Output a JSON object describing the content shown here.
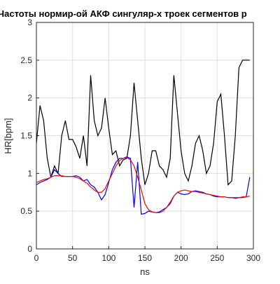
{
  "chart_data": {
    "type": "line",
    "title": "Частоты нормир-ой АКФ сингуляр-х троек сегментов р",
    "x_label": "ns",
    "y_label": "HR[bpm]",
    "x": [
      0,
      5,
      10,
      15,
      20,
      25,
      30,
      35,
      40,
      45,
      50,
      55,
      60,
      65,
      70,
      75,
      80,
      85,
      90,
      95,
      100,
      105,
      110,
      115,
      120,
      125,
      130,
      135,
      140,
      145,
      150,
      155,
      160,
      165,
      170,
      175,
      180,
      185,
      190,
      195,
      200,
      205,
      210,
      215,
      220,
      225,
      230,
      235,
      240,
      245,
      250,
      255,
      260,
      265,
      270,
      275,
      280,
      285,
      290,
      295
    ],
    "series": [
      {
        "color": "#000000",
        "values": [
          1.4,
          1.9,
          1.7,
          1.2,
          0.95,
          1.1,
          1.0,
          1.5,
          1.7,
          1.45,
          1.45,
          1.35,
          1.2,
          1.5,
          1.1,
          2.3,
          1.7,
          1.5,
          1.6,
          2.0,
          1.6,
          1.25,
          1.3,
          1.1,
          1.18,
          1.2,
          1.5,
          2.2,
          1.7,
          1.2,
          0.85,
          1.0,
          1.3,
          1.3,
          1.1,
          1.05,
          0.95,
          1.2,
          2.3,
          1.8,
          1.3,
          1.0,
          0.9,
          1.1,
          1.4,
          1.5,
          1.3,
          1.0,
          1.1,
          1.4,
          1.95,
          2.05,
          1.5,
          0.85,
          0.9,
          1.5,
          2.4,
          2.5,
          2.5,
          2.5
        ]
      },
      {
        "color": "#0000ff",
        "values": [
          0.85,
          0.88,
          0.9,
          0.92,
          0.95,
          1.05,
          1.0,
          0.96,
          0.96,
          0.96,
          0.96,
          0.97,
          0.95,
          0.9,
          0.92,
          0.85,
          0.82,
          0.75,
          0.65,
          0.72,
          0.88,
          1.05,
          1.15,
          1.2,
          1.2,
          1.22,
          1.2,
          0.55,
          1.15,
          0.46,
          0.47,
          0.5,
          0.49,
          0.48,
          0.49,
          0.52,
          0.55,
          0.6,
          0.7,
          0.75,
          0.73,
          0.72,
          0.73,
          0.76,
          0.77,
          0.76,
          0.75,
          0.73,
          0.72,
          0.7,
          0.69,
          0.69,
          0.69,
          0.68,
          0.68,
          0.67,
          0.68,
          0.68,
          0.69,
          0.95
        ]
      },
      {
        "color": "#ff0000",
        "values": [
          0.88,
          0.9,
          0.92,
          0.93,
          0.95,
          0.97,
          0.97,
          0.97,
          0.96,
          0.96,
          0.96,
          0.95,
          0.93,
          0.9,
          0.87,
          0.82,
          0.78,
          0.75,
          0.75,
          0.8,
          0.9,
          1.0,
          1.1,
          1.17,
          1.2,
          1.21,
          1.18,
          1.1,
          0.95,
          0.78,
          0.6,
          0.52,
          0.49,
          0.48,
          0.48,
          0.5,
          0.55,
          0.62,
          0.7,
          0.75,
          0.77,
          0.78,
          0.77,
          0.76,
          0.76,
          0.75,
          0.74,
          0.73,
          0.72,
          0.71,
          0.7,
          0.69,
          0.69,
          0.68,
          0.68,
          0.68,
          0.68,
          0.69,
          0.69,
          0.7
        ]
      }
    ],
    "xlim": [
      0,
      300
    ],
    "xticks": [
      0,
      50,
      100,
      150,
      200,
      250,
      300
    ],
    "ylim": [
      0,
      3
    ],
    "yticks": [
      0,
      0.5,
      1,
      1.5,
      2,
      2.5,
      3
    ],
    "grid": true
  }
}
